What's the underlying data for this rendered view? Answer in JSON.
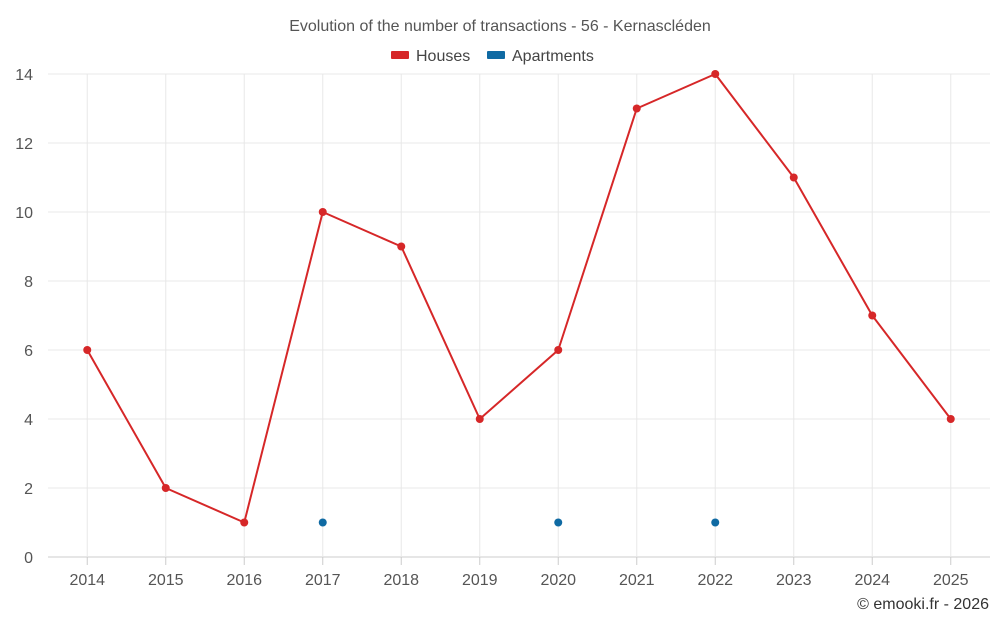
{
  "chart_data": {
    "type": "line",
    "title": "Evolution of the number of transactions - 56 - Kernascléden",
    "categories": [
      "2014",
      "2015",
      "2016",
      "2017",
      "2018",
      "2019",
      "2020",
      "2021",
      "2022",
      "2023",
      "2024",
      "2025"
    ],
    "series": [
      {
        "name": "Houses",
        "color": "#d62728",
        "values": [
          6,
          2,
          1,
          10,
          9,
          4,
          6,
          13,
          14,
          11,
          7,
          4
        ]
      },
      {
        "name": "Apartments",
        "color": "#0f6aa3",
        "values": [
          null,
          null,
          null,
          1,
          null,
          null,
          1,
          null,
          1,
          null,
          null,
          null
        ]
      }
    ],
    "y_ticks": [
      0,
      2,
      4,
      6,
      8,
      10,
      12,
      14
    ],
    "ylim": [
      0,
      14
    ],
    "xlabel": "",
    "ylabel": "",
    "grid": true,
    "legend_position": "top-center"
  },
  "credit": "© emooki.fr - 2026"
}
